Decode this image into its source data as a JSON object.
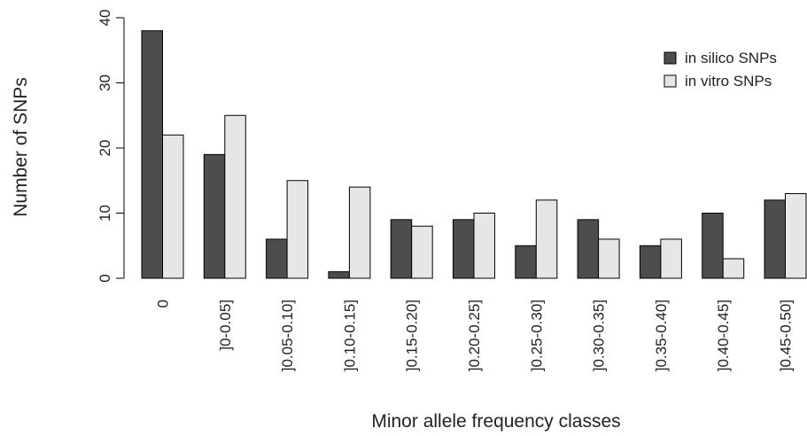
{
  "chart_data": {
    "type": "bar",
    "title": "",
    "xlabel": "Minor allele frequency classes",
    "ylabel": "Number of SNPs",
    "ylim": [
      0,
      40
    ],
    "yticks": [
      0,
      10,
      20,
      30,
      40
    ],
    "grid": false,
    "legend_position": "top-right",
    "categories": [
      "0",
      "]0-0.05]",
      "]0.05-0.10]",
      "]0.10-0.15]",
      "]0.15-0.20]",
      "]0.20-0.25]",
      "]0.25-0.30]",
      "]0.30-0.35]",
      "]0.35-0.40]",
      "]0.40-0.45]",
      "]0.45-0.50]"
    ],
    "series": [
      {
        "name": "in silico SNPs",
        "color": "#4d4d4d",
        "values": [
          38,
          19,
          6,
          1,
          9,
          9,
          5,
          9,
          5,
          10,
          12
        ]
      },
      {
        "name": "in vitro SNPs",
        "color": "#e6e6e6",
        "values": [
          22,
          25,
          15,
          14,
          8,
          10,
          12,
          6,
          6,
          3,
          13
        ]
      }
    ]
  }
}
